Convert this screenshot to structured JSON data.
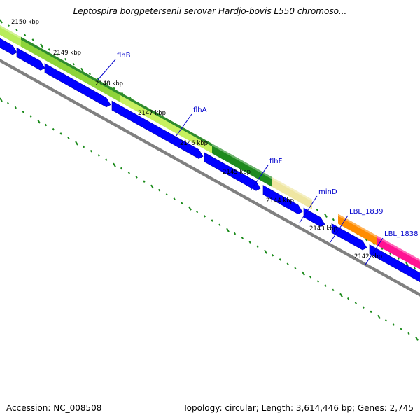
{
  "title": "Leptospira borgpetersenii serovar Hardjo-bovis L550 chromoso...",
  "footer": {
    "accession": "Accession: NC_008508",
    "summary": "Topology: circular; Length: 3,614,446 bp; Genes: 2,745"
  },
  "colors": {
    "cds": "#0000ff",
    "backbone": "#808080",
    "tick": "#1a8a1a",
    "gene_label": "#0000cc",
    "flhB_band": "#8ed43a",
    "flhA_band": "#c8f060",
    "flhF_band": "#1f8a1f",
    "minD_band": "#efe6a2",
    "LBL_1839_band": "#ff8c00",
    "LBL_1838_band": "#ff1493"
  },
  "kbp_labels": [
    "2150 kbp",
    "2149 kbp",
    "2148 kbp",
    "2147 kbp",
    "2146 kbp",
    "2145 kbp",
    "2144 kbp",
    "2143 kbp",
    "2142 kbp"
  ],
  "gene_labels": [
    "flhB",
    "flhA",
    "flhF",
    "minD",
    "LBL_1839",
    "LBL_1838"
  ]
}
